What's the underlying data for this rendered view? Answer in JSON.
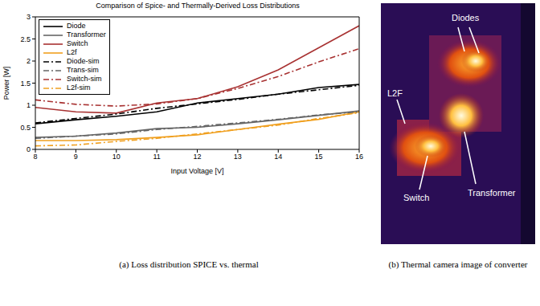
{
  "chart_data": {
    "type": "line",
    "title": "Comparison of Spice- and Thermally-Derived Loss Distributions",
    "x_label": "Input Voltage [V]",
    "y_label": "Power [W]",
    "x": [
      8,
      9,
      10,
      11,
      12,
      13,
      14,
      15,
      16
    ],
    "series": [
      {
        "name": "Diode",
        "color": "#000000",
        "line_style": "solid",
        "values": [
          0.58,
          0.67,
          0.75,
          0.85,
          1.05,
          1.15,
          1.25,
          1.4,
          1.47
        ]
      },
      {
        "name": "Transformer",
        "color": "#666666",
        "line_style": "solid",
        "values": [
          0.27,
          0.3,
          0.37,
          0.47,
          0.5,
          0.58,
          0.67,
          0.77,
          0.87
        ]
      },
      {
        "name": "Switch",
        "color": "#a83232",
        "line_style": "solid",
        "values": [
          0.95,
          0.85,
          0.82,
          1.05,
          1.15,
          1.42,
          1.8,
          2.3,
          2.8
        ]
      },
      {
        "name": "L2f",
        "color": "#f0a020",
        "line_style": "solid",
        "values": [
          0.2,
          0.2,
          0.22,
          0.27,
          0.33,
          0.45,
          0.57,
          0.68,
          0.85
        ]
      },
      {
        "name": "Diode-sim",
        "color": "#000000",
        "line_style": "dashdot",
        "values": [
          0.6,
          0.7,
          0.8,
          0.93,
          1.03,
          1.13,
          1.25,
          1.35,
          1.45
        ]
      },
      {
        "name": "Trans-sim",
        "color": "#666666",
        "line_style": "dashdot",
        "values": [
          0.25,
          0.3,
          0.35,
          0.45,
          0.52,
          0.6,
          0.68,
          0.78,
          0.85
        ]
      },
      {
        "name": "Switch-sim",
        "color": "#a83232",
        "line_style": "dashdot",
        "values": [
          1.12,
          1.02,
          0.98,
          1.03,
          1.15,
          1.38,
          1.65,
          1.98,
          2.28
        ]
      },
      {
        "name": "L2f-sim",
        "color": "#f0a020",
        "line_style": "dashdot",
        "values": [
          0.08,
          0.1,
          0.18,
          0.25,
          0.35,
          0.45,
          0.55,
          0.7,
          0.83
        ]
      }
    ],
    "xlim": [
      8,
      16
    ],
    "ylim": [
      0,
      3
    ],
    "xticks": [
      8,
      9,
      10,
      11,
      12,
      13,
      14,
      15,
      16
    ],
    "yticks": [
      0,
      0.5,
      1,
      1.5,
      2,
      2.5,
      3
    ],
    "legend": "upper left",
    "grid": false
  },
  "photo": {
    "labels": [
      "Diodes",
      "L2F",
      "Transformer",
      "Switch"
    ]
  },
  "captions": [
    "(a) Loss distribution SPICE vs. thermal",
    "(b) Thermal camera image of converter"
  ]
}
